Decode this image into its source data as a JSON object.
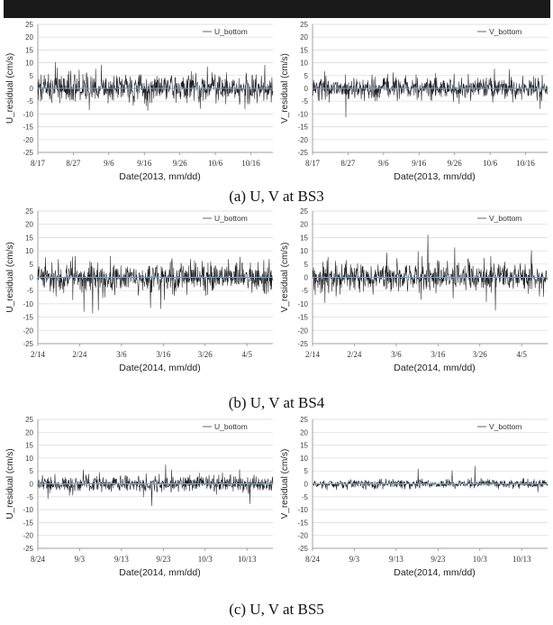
{
  "captions": [
    "(a) U, V at BS3",
    "(b) U, V at BS4",
    "(c) U, V at BS5"
  ],
  "colors": {
    "series": "#1c1c1c",
    "zero_line": "#6fa8dc",
    "grid": "#d9d9d9"
  },
  "chart_data": [
    {
      "id": "bs3-u",
      "type": "line",
      "ylabel": "U_residual (cm/s)",
      "xlabel": "Date(2013, mm/dd)",
      "series": [
        {
          "name": "U_bottom"
        }
      ],
      "legend": "top-right",
      "ylim": [
        -25,
        25
      ],
      "yticks": [
        -25,
        -20,
        -15,
        -10,
        -5,
        0,
        5,
        10,
        15,
        20,
        25
      ],
      "xticks": [
        "8/17",
        "8/27",
        "9/6",
        "9/16",
        "9/26",
        "10/6",
        "10/16"
      ],
      "x_start": "8/17",
      "x_end": "10/22",
      "amplitude_typical": 5,
      "grid": true
    },
    {
      "id": "bs3-v",
      "type": "line",
      "ylabel": "V_residual (cm/s)",
      "xlabel": "Date(2013, mm/dd)",
      "series": [
        {
          "name": "V_bottom"
        }
      ],
      "legend": "top-right",
      "ylim": [
        -25,
        25
      ],
      "yticks": [
        -25,
        -20,
        -15,
        -10,
        -5,
        0,
        5,
        10,
        15,
        20,
        25
      ],
      "xticks": [
        "8/17",
        "8/27",
        "9/6",
        "9/16",
        "9/26",
        "10/6",
        "10/16"
      ],
      "x_start": "8/17",
      "x_end": "10/22",
      "amplitude_typical": 4,
      "grid": true
    },
    {
      "id": "bs4-u",
      "type": "line",
      "ylabel": "U_residual (cm/s)",
      "xlabel": "Date(2014, mm/dd)",
      "series": [
        {
          "name": "U_bottom"
        }
      ],
      "legend": "top-right",
      "ylim": [
        -25,
        25
      ],
      "yticks": [
        -25,
        -20,
        -15,
        -10,
        -5,
        0,
        5,
        10,
        15,
        20,
        25
      ],
      "xticks": [
        "2/14",
        "2/24",
        "3/6",
        "3/16",
        "3/26",
        "4/5"
      ],
      "x_start": "2/14",
      "x_end": "4/12",
      "amplitude_typical": 5,
      "grid": true
    },
    {
      "id": "bs4-v",
      "type": "line",
      "ylabel": "V_residual (cm/s)",
      "xlabel": "Date(2014, mm/dd)",
      "series": [
        {
          "name": "V_bottom"
        }
      ],
      "legend": "top-right",
      "ylim": [
        -25,
        25
      ],
      "yticks": [
        -25,
        -20,
        -15,
        -10,
        -5,
        0,
        5,
        10,
        15,
        20,
        25
      ],
      "xticks": [
        "2/14",
        "2/24",
        "3/6",
        "3/16",
        "3/26",
        "4/5"
      ],
      "x_start": "2/14",
      "x_end": "4/12",
      "amplitude_typical": 5,
      "grid": true
    },
    {
      "id": "bs5-u",
      "type": "line",
      "ylabel": "U_residual (cm/s)",
      "xlabel": "Date(2014, mm/dd)",
      "series": [
        {
          "name": "U_bottom"
        }
      ],
      "legend": "top-right",
      "ylim": [
        -25,
        25
      ],
      "yticks": [
        -25,
        -20,
        -15,
        -10,
        -5,
        0,
        5,
        10,
        15,
        20,
        25
      ],
      "xticks": [
        "8/24",
        "9/3",
        "9/13",
        "9/23",
        "10/3",
        "10/13"
      ],
      "x_start": "8/24",
      "x_end": "10/17",
      "amplitude_typical": 3,
      "grid": true
    },
    {
      "id": "bs5-v",
      "type": "line",
      "ylabel": "V_residual (cm/s)",
      "xlabel": "Date(2014, mm/dd)",
      "series": [
        {
          "name": "V_bottom"
        }
      ],
      "legend": "top-right",
      "ylim": [
        -25,
        25
      ],
      "yticks": [
        -25,
        -20,
        -15,
        -10,
        -5,
        0,
        5,
        10,
        15,
        20,
        25
      ],
      "xticks": [
        "8/24",
        "9/3",
        "9/13",
        "9/23",
        "10/3",
        "10/13"
      ],
      "x_start": "8/24",
      "x_end": "10/17",
      "amplitude_typical": 1.5,
      "grid": true
    }
  ]
}
